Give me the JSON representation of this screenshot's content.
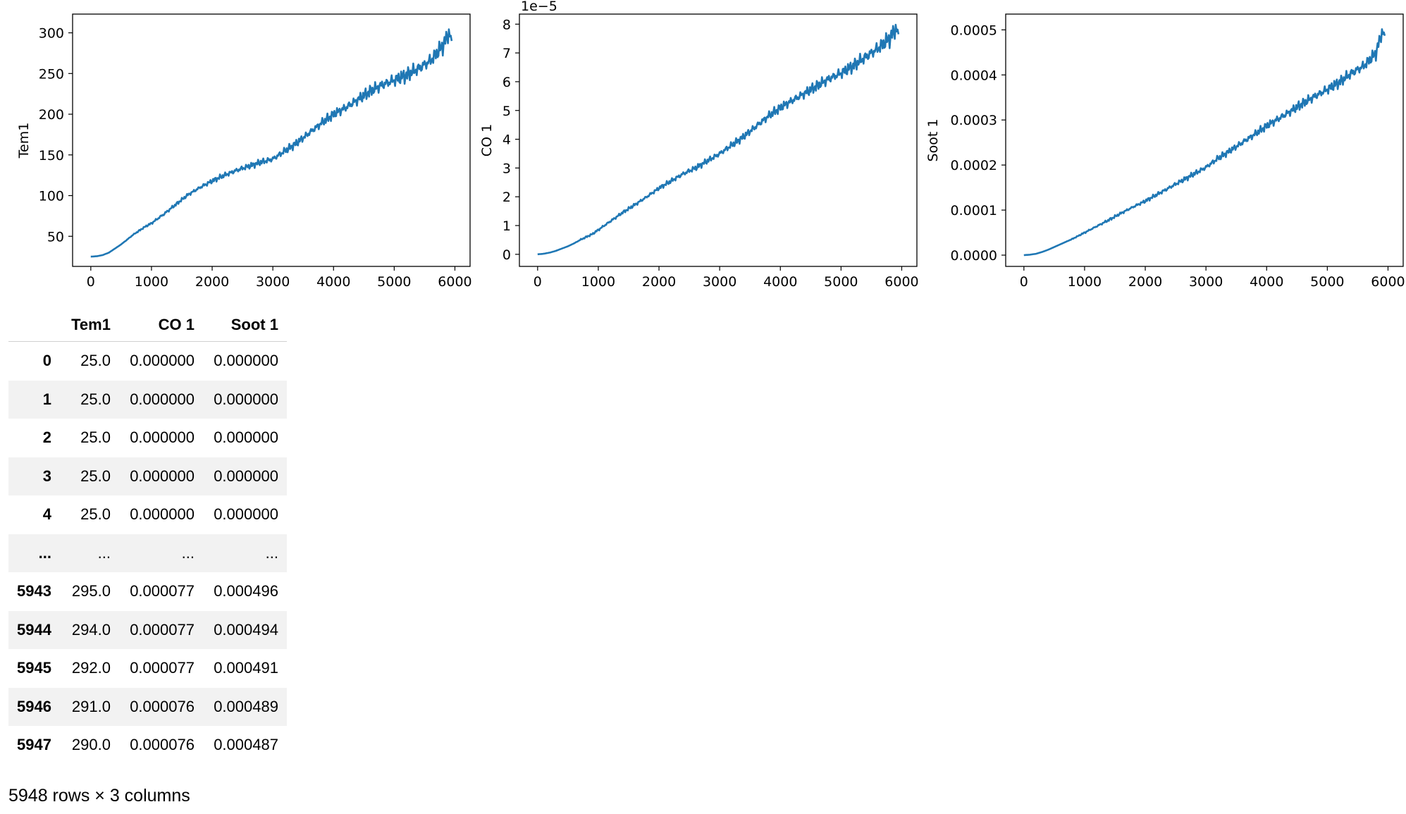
{
  "chart_data": [
    {
      "type": "line",
      "ylabel": "Tem1",
      "xlim": [
        -300,
        6250
      ],
      "ylim": [
        13,
        323
      ],
      "xticks": [
        0,
        1000,
        2000,
        3000,
        4000,
        5000,
        6000
      ],
      "yticks": [
        50,
        100,
        150,
        200,
        250,
        300
      ],
      "ytick_labels": [
        "50",
        "100",
        "150",
        "200",
        "250",
        "300"
      ],
      "offset_text": "",
      "line_color": "#1f77b4",
      "x": [
        0,
        100,
        200,
        300,
        400,
        500,
        600,
        700,
        800,
        900,
        1000,
        1200,
        1400,
        1600,
        1800,
        2000,
        2200,
        2400,
        2600,
        2800,
        3000,
        3200,
        3400,
        3600,
        3800,
        4000,
        4200,
        4400,
        4600,
        4800,
        5000,
        5200,
        5400,
        5600,
        5800,
        5900,
        5947
      ],
      "y": [
        25,
        25.5,
        27,
        30,
        35,
        40,
        46,
        52,
        57,
        62,
        66,
        77,
        89,
        101,
        110,
        118,
        125,
        131,
        136,
        141,
        145,
        155,
        165,
        177,
        189,
        200,
        208,
        218,
        228,
        236,
        242,
        248,
        256,
        266,
        284,
        300,
        290
      ],
      "noise": [
        0,
        0,
        0,
        0,
        0,
        0,
        0.5,
        0.5,
        1,
        1,
        1.5,
        2,
        2,
        2,
        2.5,
        3,
        3,
        3.5,
        3.5,
        4,
        4,
        4.5,
        5,
        5,
        5.5,
        6,
        6.5,
        7,
        7.5,
        8,
        8.5,
        9,
        9,
        9.5,
        10,
        10,
        8
      ]
    },
    {
      "type": "line",
      "ylabel": "CO 1",
      "xlim": [
        -300,
        6250
      ],
      "ylim": [
        -0.42,
        8.35
      ],
      "xticks": [
        0,
        1000,
        2000,
        3000,
        4000,
        5000,
        6000
      ],
      "yticks": [
        0,
        1,
        2,
        3,
        4,
        5,
        6,
        7,
        8
      ],
      "ytick_labels": [
        "0",
        "1",
        "2",
        "3",
        "4",
        "5",
        "6",
        "7",
        "8"
      ],
      "offset_text": "1e−5",
      "line_color": "#1f77b4",
      "x": [
        0,
        100,
        200,
        300,
        400,
        500,
        600,
        700,
        800,
        900,
        1000,
        1200,
        1400,
        1600,
        1800,
        2000,
        2200,
        2400,
        2600,
        2800,
        3000,
        3200,
        3400,
        3600,
        3800,
        4000,
        4200,
        4400,
        4600,
        4800,
        5000,
        5200,
        5400,
        5600,
        5800,
        5900,
        5947
      ],
      "y": [
        0,
        0.02,
        0.06,
        0.12,
        0.2,
        0.28,
        0.38,
        0.5,
        0.6,
        0.7,
        0.85,
        1.15,
        1.45,
        1.72,
        2,
        2.3,
        2.55,
        2.8,
        3,
        3.25,
        3.5,
        3.8,
        4.1,
        4.45,
        4.8,
        5.1,
        5.35,
        5.6,
        5.85,
        6.1,
        6.3,
        6.55,
        6.85,
        7.15,
        7.5,
        7.85,
        7.65
      ],
      "noise": [
        0,
        0,
        0,
        0,
        0,
        0,
        0,
        0.02,
        0.03,
        0.03,
        0.04,
        0.05,
        0.05,
        0.06,
        0.06,
        0.07,
        0.08,
        0.09,
        0.1,
        0.1,
        0.11,
        0.12,
        0.13,
        0.14,
        0.15,
        0.16,
        0.17,
        0.18,
        0.19,
        0.2,
        0.21,
        0.22,
        0.24,
        0.26,
        0.28,
        0.3,
        0.25
      ]
    },
    {
      "type": "line",
      "ylabel": "Soot 1",
      "xlim": [
        -300,
        6250
      ],
      "ylim": [
        -2.5e-05,
        0.000535
      ],
      "xticks": [
        0,
        1000,
        2000,
        3000,
        4000,
        5000,
        6000
      ],
      "yticks": [
        0,
        0.0001,
        0.0002,
        0.0003,
        0.0004,
        0.0005
      ],
      "ytick_labels": [
        "0.0000",
        "0.0001",
        "0.0002",
        "0.0003",
        "0.0004",
        "0.0005"
      ],
      "offset_text": "",
      "line_color": "#1f77b4",
      "x": [
        0,
        100,
        200,
        300,
        400,
        500,
        600,
        700,
        800,
        900,
        1000,
        1200,
        1400,
        1600,
        1800,
        2000,
        2200,
        2400,
        2600,
        2800,
        3000,
        3200,
        3400,
        3600,
        3800,
        4000,
        4200,
        4400,
        4600,
        4800,
        5000,
        5200,
        5400,
        5600,
        5800,
        5900,
        5947
      ],
      "y": [
        0,
        1e-06,
        3e-06,
        7e-06,
        1.2e-05,
        1.8e-05,
        2.4e-05,
        3e-05,
        3.6e-05,
        4.3e-05,
        5e-05,
        6.4e-05,
        7.8e-05,
        9.3e-05,
        0.000107,
        0.00012,
        0.000135,
        0.00015,
        0.000165,
        0.00018,
        0.000195,
        0.000215,
        0.000232,
        0.00025,
        0.000268,
        0.000287,
        0.000303,
        0.00032,
        0.000337,
        0.000353,
        0.000368,
        0.000384,
        0.000404,
        0.00042,
        0.000448,
        0.000495,
        0.000487
      ],
      "noise": [
        0,
        0,
        0,
        0,
        0,
        0,
        0,
        0,
        1e-06,
        1e-06,
        2e-06,
        2e-06,
        3e-06,
        3e-06,
        3e-06,
        4e-06,
        4e-06,
        5e-06,
        5e-06,
        6e-06,
        6e-06,
        7e-06,
        7e-06,
        8e-06,
        8e-06,
        9e-06,
        1e-05,
        1e-05,
        1.1e-05,
        1.1e-05,
        1.2e-05,
        1.2e-05,
        1.3e-05,
        1.3e-05,
        1.4e-05,
        1.5e-05,
        1.2e-05
      ]
    }
  ],
  "table": {
    "columns": [
      "Tem1",
      "CO 1",
      "Soot 1"
    ],
    "rows": [
      {
        "index": "0",
        "cells": [
          "25.0",
          "0.000000",
          "0.000000"
        ]
      },
      {
        "index": "1",
        "cells": [
          "25.0",
          "0.000000",
          "0.000000"
        ]
      },
      {
        "index": "2",
        "cells": [
          "25.0",
          "0.000000",
          "0.000000"
        ]
      },
      {
        "index": "3",
        "cells": [
          "25.0",
          "0.000000",
          "0.000000"
        ]
      },
      {
        "index": "4",
        "cells": [
          "25.0",
          "0.000000",
          "0.000000"
        ]
      },
      {
        "index": "...",
        "cells": [
          "...",
          "...",
          "..."
        ]
      },
      {
        "index": "5943",
        "cells": [
          "295.0",
          "0.000077",
          "0.000496"
        ]
      },
      {
        "index": "5944",
        "cells": [
          "294.0",
          "0.000077",
          "0.000494"
        ]
      },
      {
        "index": "5945",
        "cells": [
          "292.0",
          "0.000077",
          "0.000491"
        ]
      },
      {
        "index": "5946",
        "cells": [
          "291.0",
          "0.000076",
          "0.000489"
        ]
      },
      {
        "index": "5947",
        "cells": [
          "290.0",
          "0.000076",
          "0.000487"
        ]
      }
    ],
    "shape_note": "5948 rows × 3 columns"
  }
}
